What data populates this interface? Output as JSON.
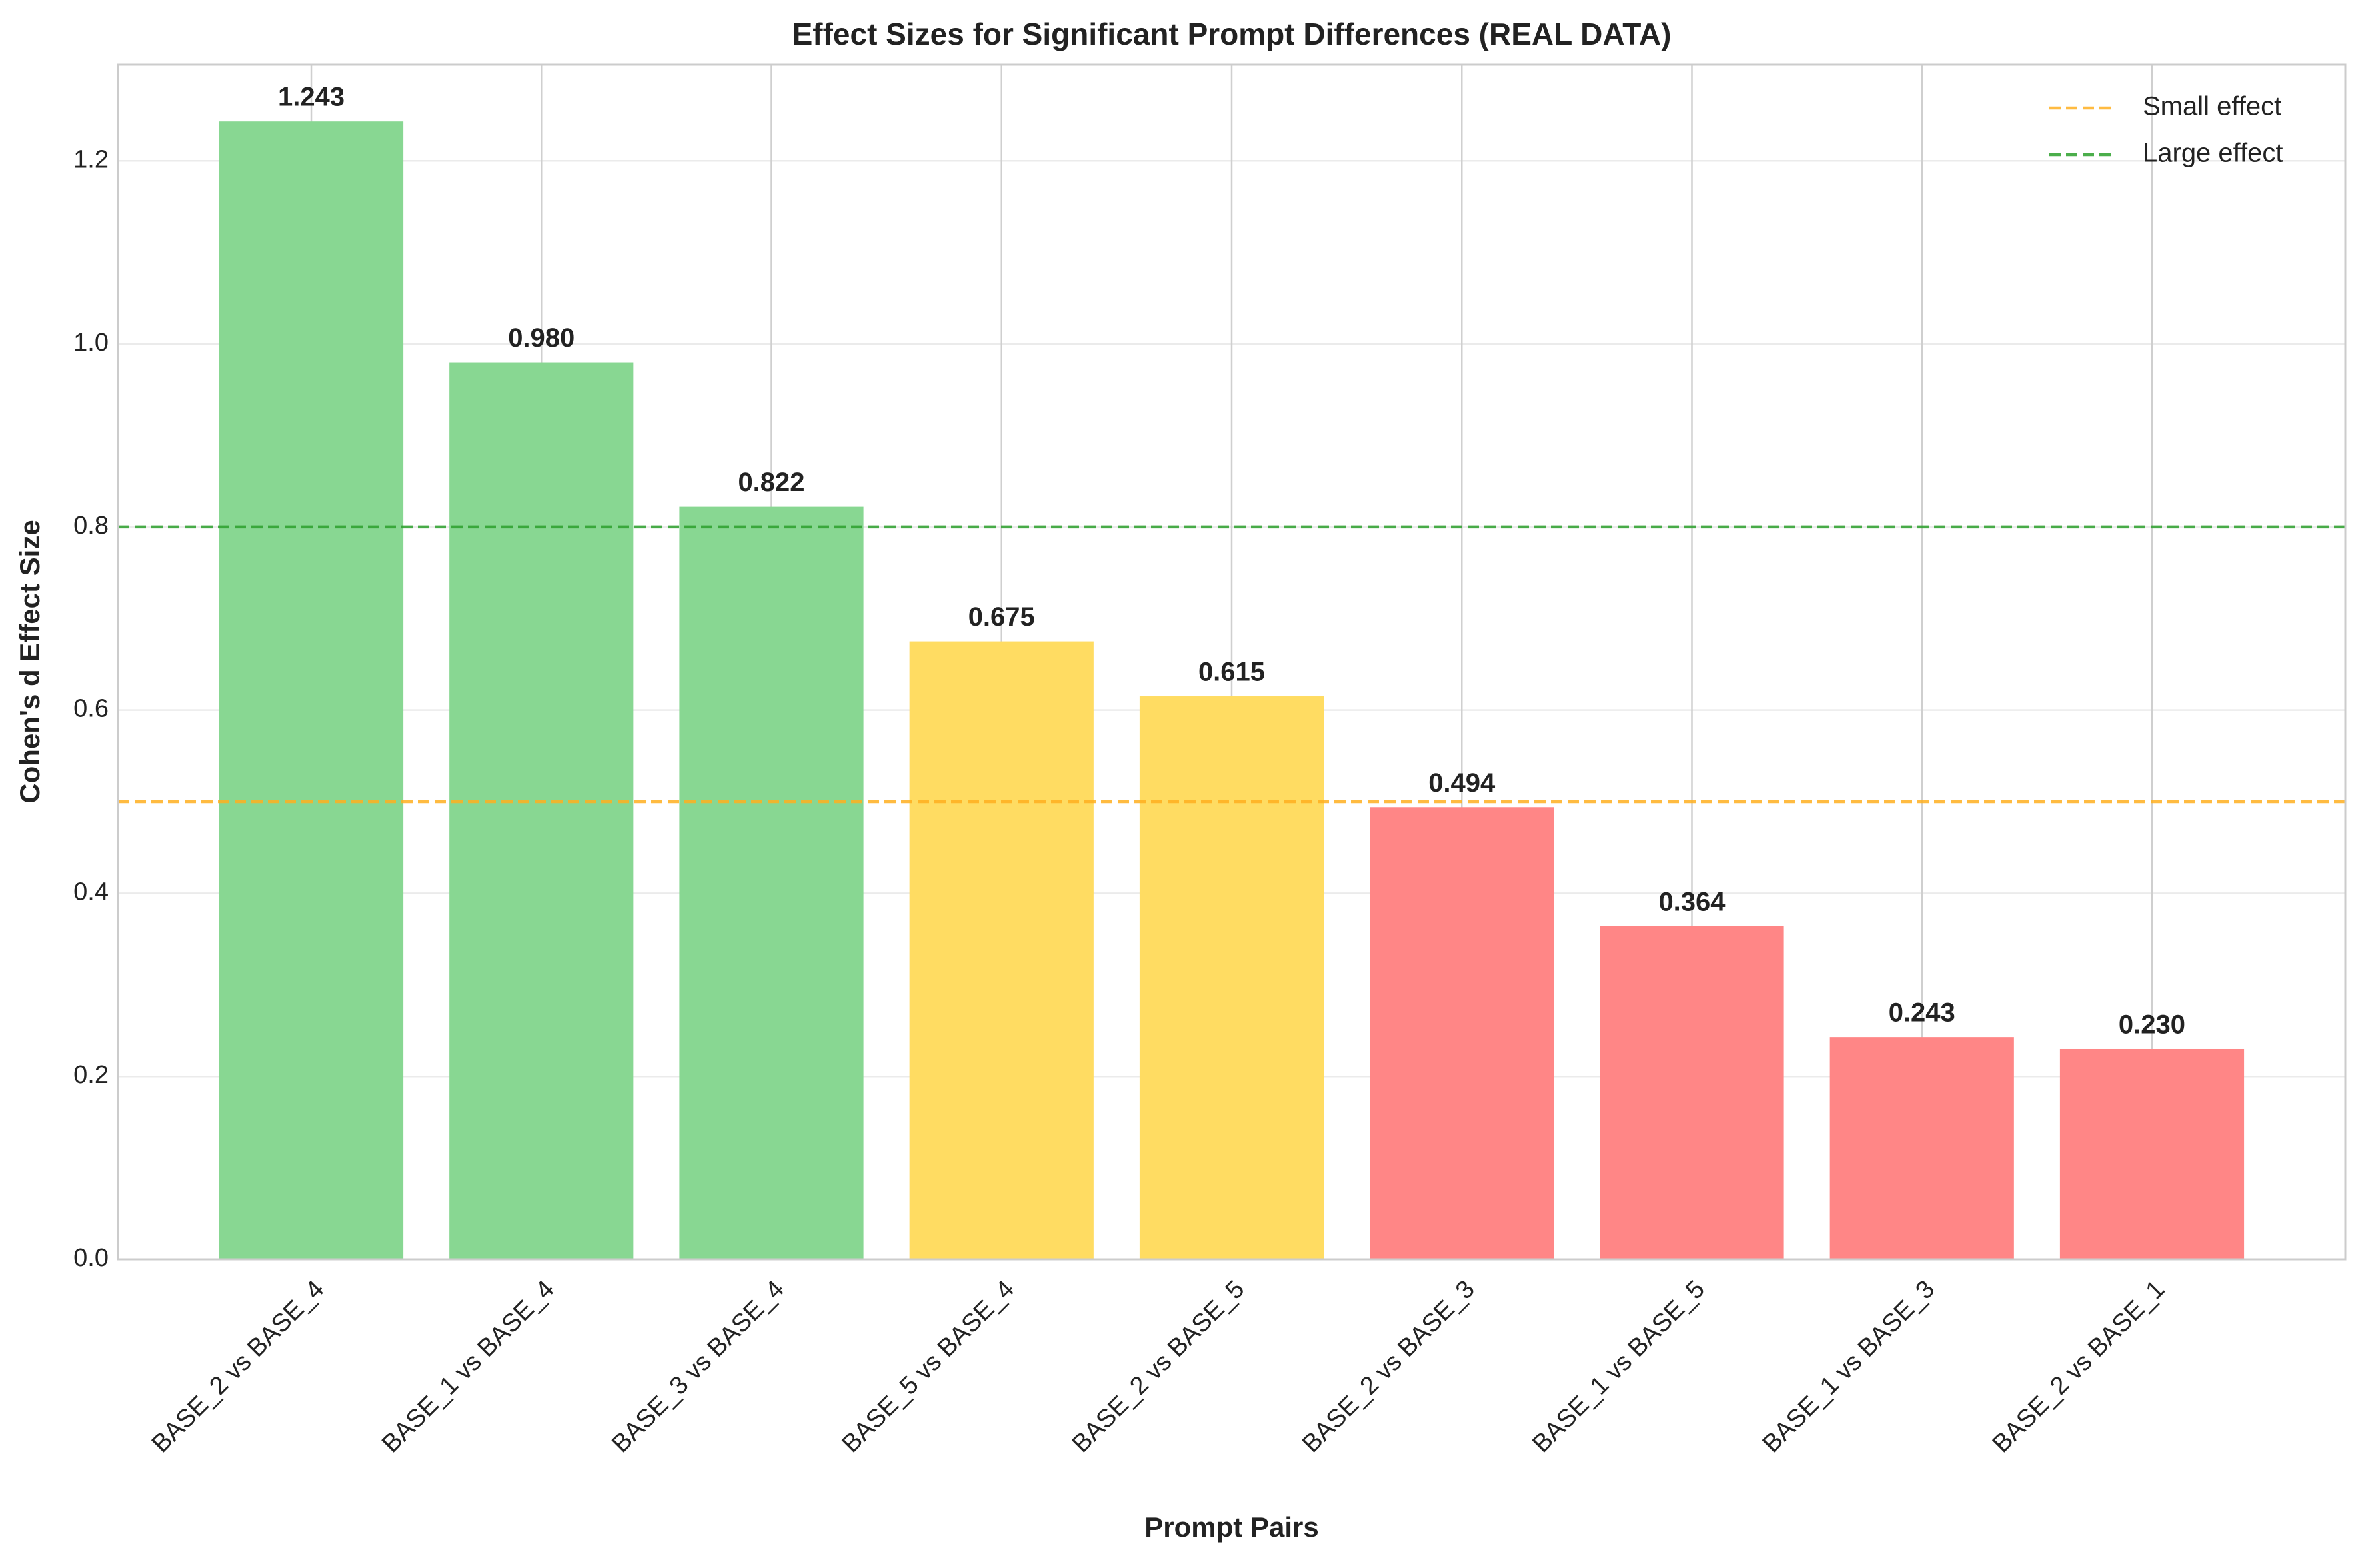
{
  "chart_data": {
    "type": "bar",
    "title": "Effect Sizes for Significant Prompt Differences (REAL DATA)",
    "x_label": "Prompt Pairs",
    "y_label": "Cohen's d Effect Size",
    "categories": [
      "BASE_2 vs BASE_4",
      "BASE_1 vs BASE_4",
      "BASE_3 vs BASE_4",
      "BASE_5 vs BASE_4",
      "BASE_2 vs BASE_5",
      "BASE_2 vs BASE_3",
      "BASE_1 vs BASE_5",
      "BASE_1 vs BASE_3",
      "BASE_2 vs BASE_1"
    ],
    "values": [
      1.243,
      0.98,
      0.822,
      0.675,
      0.615,
      0.494,
      0.364,
      0.243,
      0.23
    ],
    "value_labels": [
      "1.243",
      "0.980",
      "0.822",
      "0.675",
      "0.615",
      "0.494",
      "0.364",
      "0.243",
      "0.230"
    ],
    "colors": [
      "#88d792",
      "#88d792",
      "#88d792",
      "#ffdc62",
      "#ffdc62",
      "#ff8686",
      "#ff8686",
      "#ff8686",
      "#ff8686"
    ],
    "ylim": [
      0,
      1.305
    ],
    "yticks": [
      {
        "value": 0,
        "label": "0.0"
      },
      0.2,
      0.4,
      0.6,
      0.8,
      {
        "value": 1,
        "label": "1.0"
      },
      1.2
    ],
    "grid": true,
    "reference_lines": [
      {
        "name": "Small effect",
        "value": 0.5,
        "color": "#ffb020"
      },
      {
        "name": "Large effect",
        "value": 0.8,
        "color": "#2ca02c"
      }
    ],
    "legend": "upper right"
  }
}
